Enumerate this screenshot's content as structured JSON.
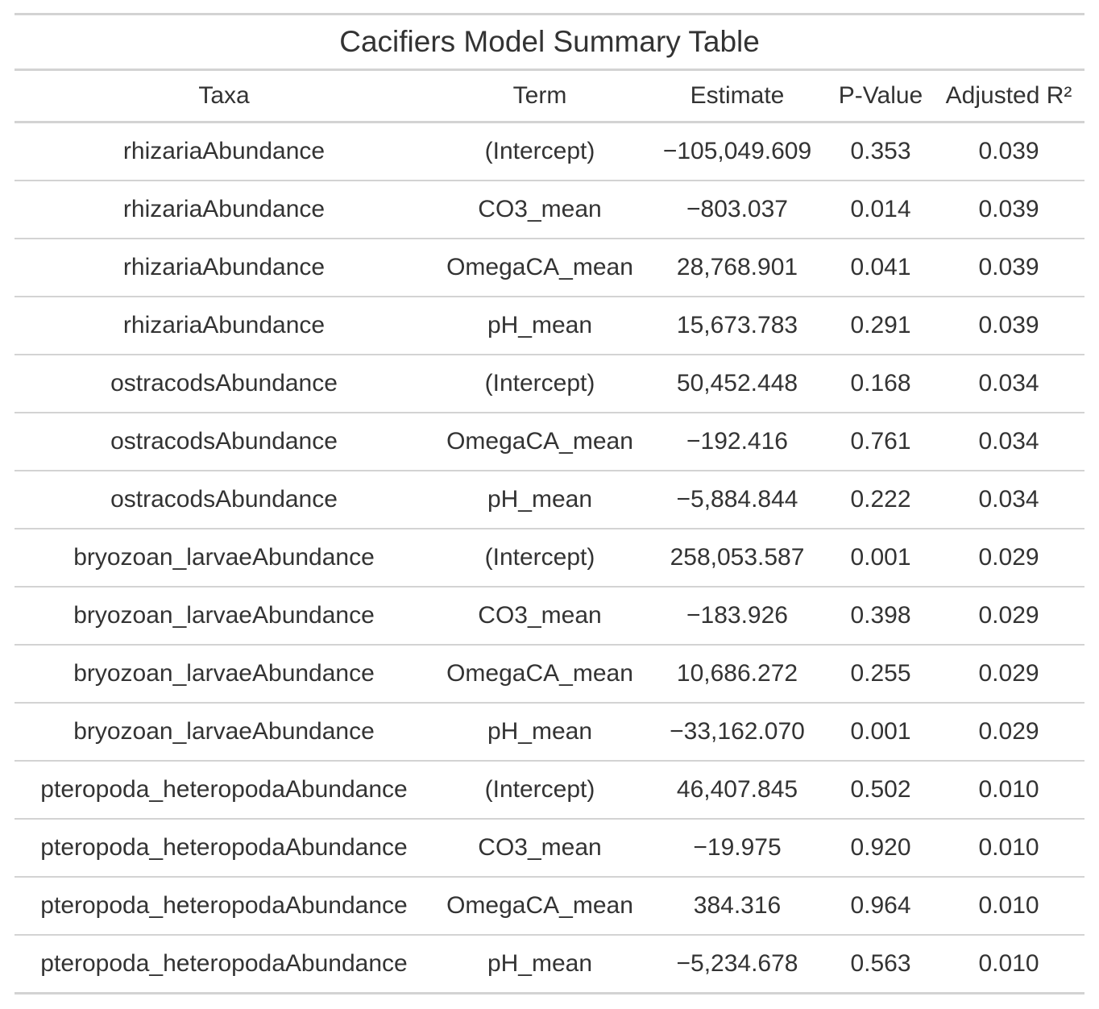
{
  "table": {
    "title": "Cacifiers Model Summary Table",
    "columns": [
      "Taxa",
      "Term",
      "Estimate",
      "P-Value",
      "Adjusted R²"
    ],
    "rows": [
      [
        "rhizariaAbundance",
        "(Intercept)",
        "−105,049.609",
        "0.353",
        "0.039"
      ],
      [
        "rhizariaAbundance",
        "CO3_mean",
        "−803.037",
        "0.014",
        "0.039"
      ],
      [
        "rhizariaAbundance",
        "OmegaCA_mean",
        "28,768.901",
        "0.041",
        "0.039"
      ],
      [
        "rhizariaAbundance",
        "pH_mean",
        "15,673.783",
        "0.291",
        "0.039"
      ],
      [
        "ostracodsAbundance",
        "(Intercept)",
        "50,452.448",
        "0.168",
        "0.034"
      ],
      [
        "ostracodsAbundance",
        "OmegaCA_mean",
        "−192.416",
        "0.761",
        "0.034"
      ],
      [
        "ostracodsAbundance",
        "pH_mean",
        "−5,884.844",
        "0.222",
        "0.034"
      ],
      [
        "bryozoan_larvaeAbundance",
        "(Intercept)",
        "258,053.587",
        "0.001",
        "0.029"
      ],
      [
        "bryozoan_larvaeAbundance",
        "CO3_mean",
        "−183.926",
        "0.398",
        "0.029"
      ],
      [
        "bryozoan_larvaeAbundance",
        "OmegaCA_mean",
        "10,686.272",
        "0.255",
        "0.029"
      ],
      [
        "bryozoan_larvaeAbundance",
        "pH_mean",
        "−33,162.070",
        "0.001",
        "0.029"
      ],
      [
        "pteropoda_heteropodaAbundance",
        "(Intercept)",
        "46,407.845",
        "0.502",
        "0.010"
      ],
      [
        "pteropoda_heteropodaAbundance",
        "CO3_mean",
        "−19.975",
        "0.920",
        "0.010"
      ],
      [
        "pteropoda_heteropodaAbundance",
        "OmegaCA_mean",
        "384.316",
        "0.964",
        "0.010"
      ],
      [
        "pteropoda_heteropodaAbundance",
        "pH_mean",
        "−5,234.678",
        "0.563",
        "0.010"
      ]
    ]
  }
}
